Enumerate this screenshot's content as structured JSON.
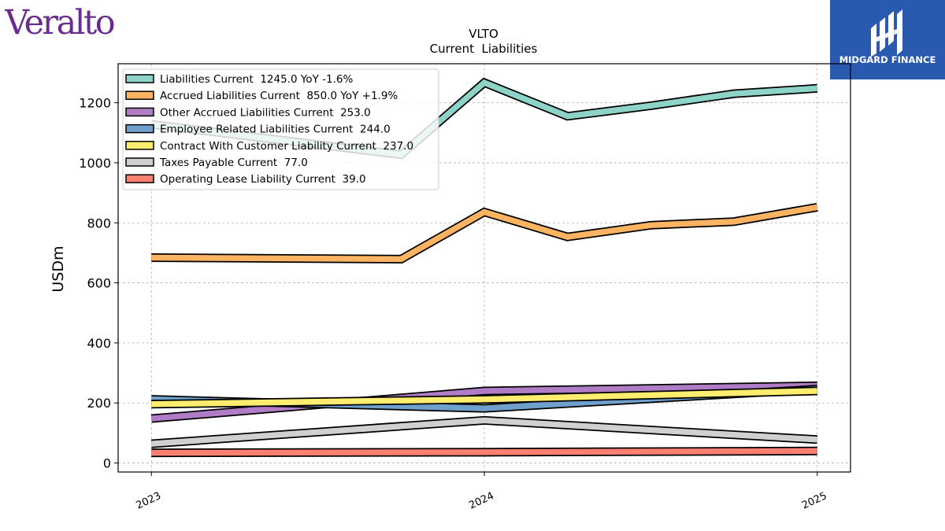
{
  "brand": {
    "company_logo_text": "Veralto",
    "company_logo_color": "#6a2c8e",
    "publisher_logo_text": "MIDGARD FINANCE",
    "publisher_logo_bg": "#2a5ab0"
  },
  "chart_data": {
    "type": "line",
    "title": "VLTO",
    "subtitle": "Current  Liabilities",
    "ylabel": "USDm",
    "xlabel": "",
    "ylim": [
      -30,
      1330
    ],
    "yticks": [
      0,
      200,
      400,
      600,
      800,
      1000,
      1200
    ],
    "xlim": [
      2022.9,
      2025.1
    ],
    "xticks": [
      {
        "label": "2023",
        "x": 2023
      },
      {
        "label": "2024",
        "x": 2024
      },
      {
        "label": "2025",
        "x": 2025
      }
    ],
    "grid": true,
    "legend_position": "top-left",
    "series": [
      {
        "name": "Liabilities Current  1245.0 YoY -1.6%",
        "color": "#8dd3c7",
        "x": [
          2023.0,
          2023.75,
          2024.0,
          2024.25,
          2024.5,
          2024.75,
          2025.0
        ],
        "y": [
          1128,
          1027,
          1267,
          1155,
          1190,
          1230,
          1248
        ]
      },
      {
        "name": "Accrued Liabilities Current  850.0 YoY +1.9%",
        "color": "#fdb462",
        "x": [
          2023.0,
          2023.75,
          2024.0,
          2024.25,
          2024.5,
          2024.75,
          2025.0
        ],
        "y": [
          684,
          679,
          836,
          753,
          792,
          804,
          852
        ]
      },
      {
        "name": "Other Accrued Liabilities Current  253.0",
        "color": "#b07cc6",
        "x": [
          2023.0,
          2024.0,
          2025.0
        ],
        "y": [
          148,
          240,
          257
        ]
      },
      {
        "name": "Employee Related Liabilities Current  244.0",
        "color": "#6f9fcc",
        "x": [
          2023.0,
          2024.0,
          2025.0
        ],
        "y": [
          212,
          182,
          246
        ]
      },
      {
        "name": "Contract With Customer Liability Current  237.0",
        "color": "#ffed6f",
        "x": [
          2023.0,
          2024.0,
          2025.0
        ],
        "y": [
          196,
          212,
          240
        ]
      },
      {
        "name": "Taxes Payable Current  77.0",
        "color": "#d0d0d0",
        "x": [
          2023.0,
          2024.0,
          2025.0
        ],
        "y": [
          64,
          142,
          78
        ]
      },
      {
        "name": "Operating Lease Liability Current  39.0",
        "color": "#fb8072",
        "x": [
          2023.0,
          2024.0,
          2025.0
        ],
        "y": [
          34,
          36,
          40
        ]
      }
    ]
  }
}
